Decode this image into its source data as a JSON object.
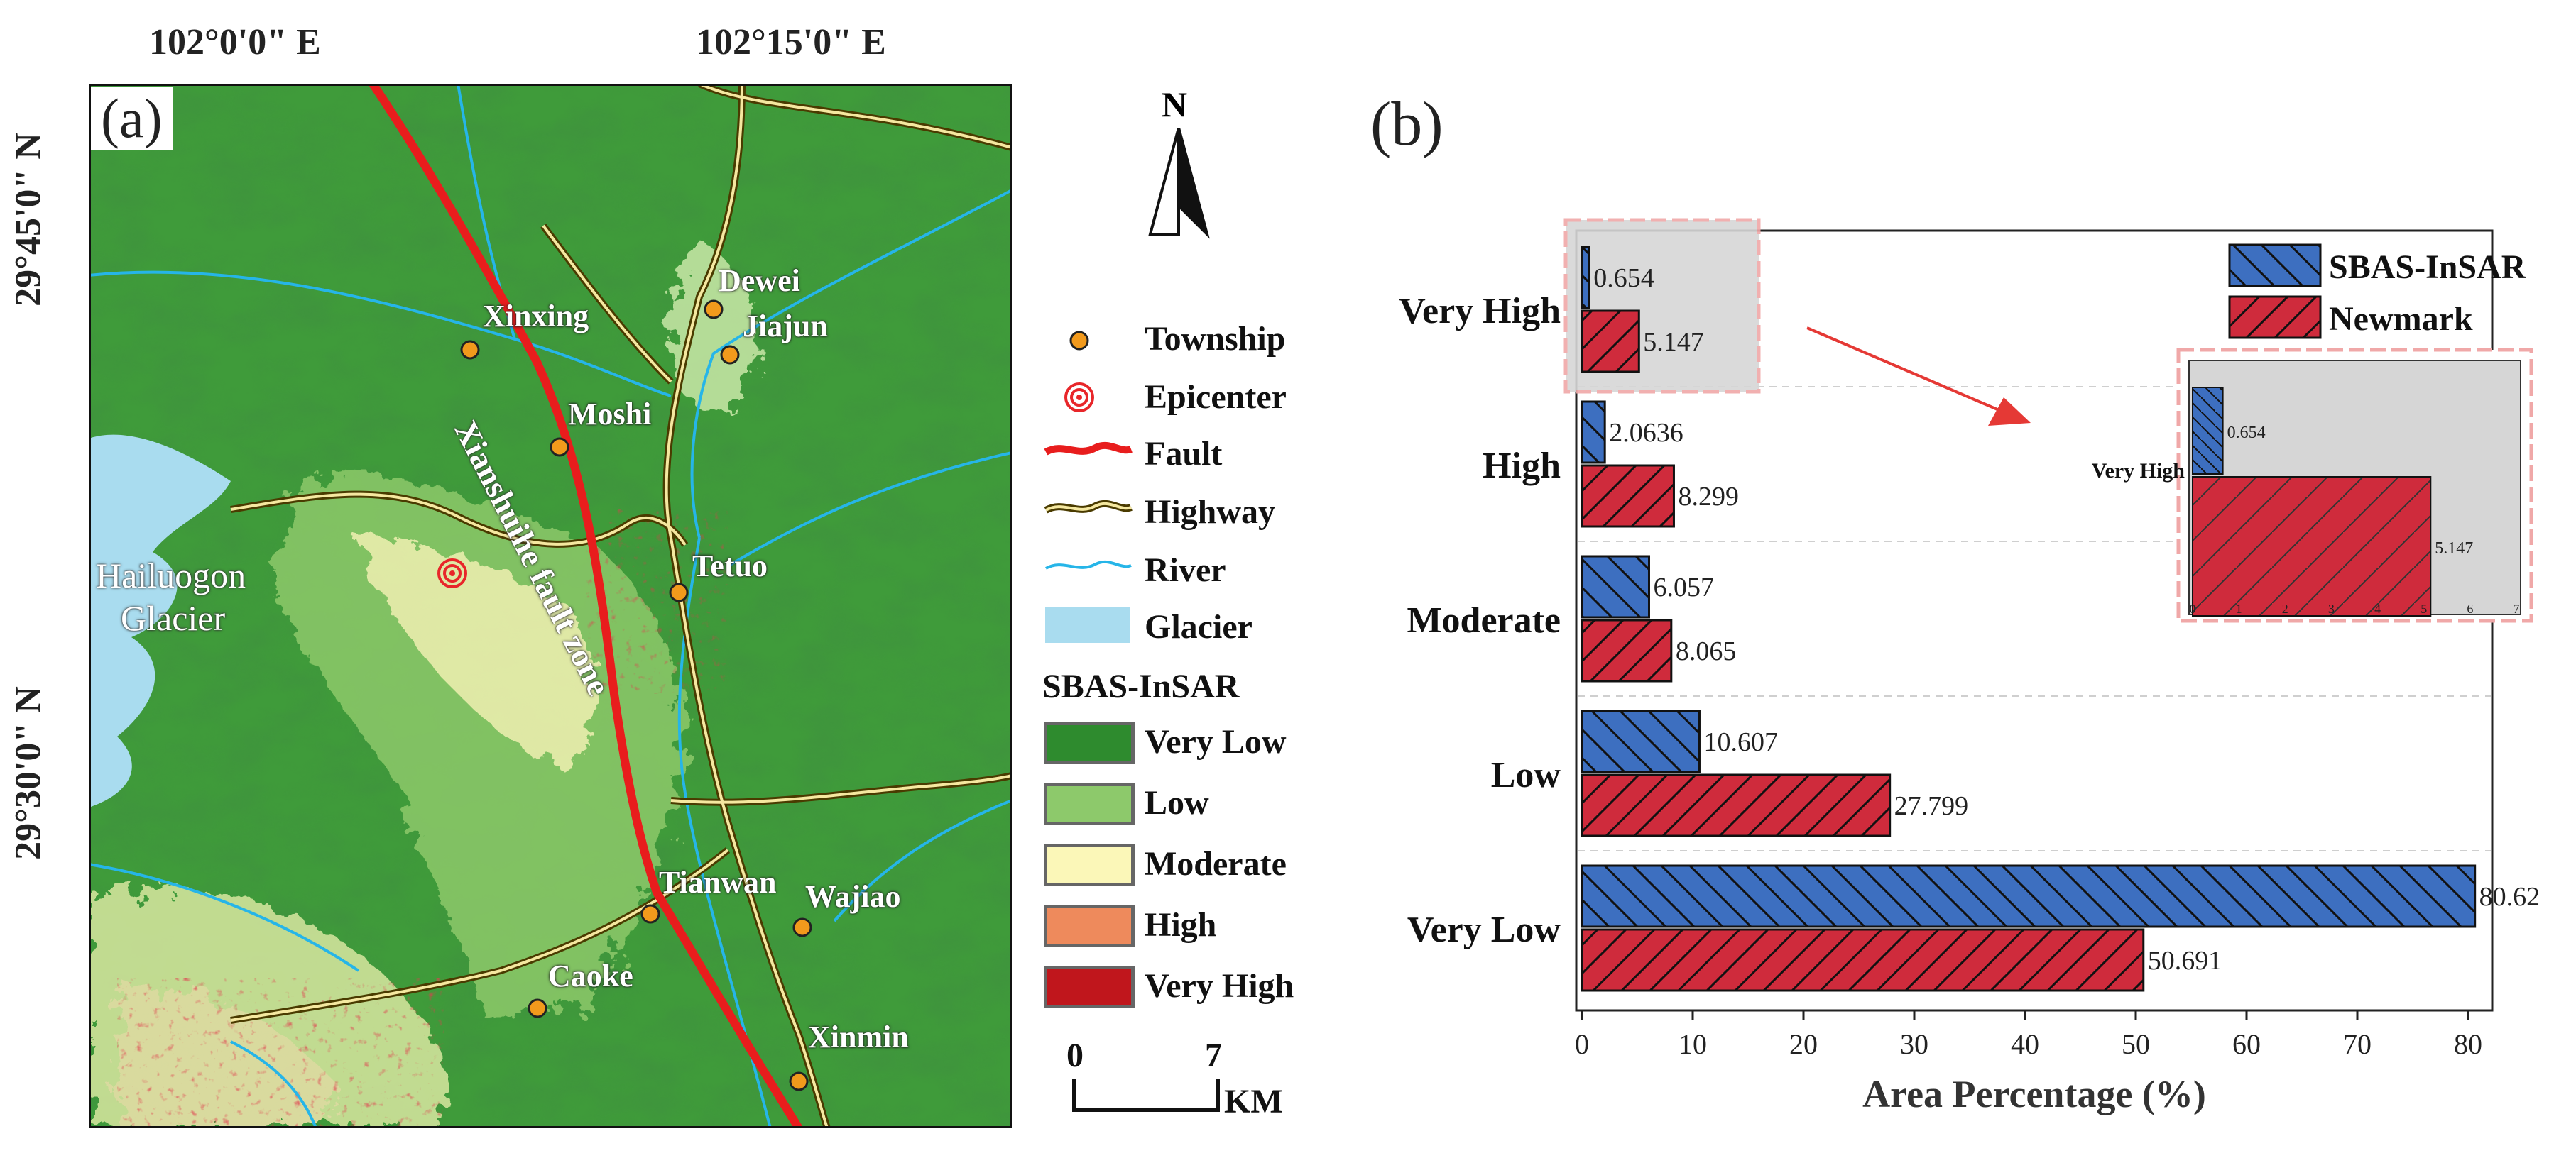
{
  "panel_a": {
    "label": "(a)",
    "coords": {
      "top_left": "102°0'0\" E",
      "top_right": "102°15'0\" E",
      "left_top": "29°45'0\" N",
      "left_bottom": "29°30'0\" N"
    },
    "north_label": "N",
    "townships": [
      "Xinxing",
      "Dewei",
      "Jiajun",
      "Moshi",
      "Tetuo",
      "Tianwan",
      "Wajiao",
      "Caoke",
      "Xinmin"
    ],
    "glacier_name_1": "Hailuogon",
    "glacier_name_2": "Glacier",
    "fault_zone_label": "Xianshuihe fault zone",
    "legend": {
      "township": "Township",
      "epicenter": "Epicenter",
      "fault": "Fault",
      "highway": "Highway",
      "river": "River",
      "glacier": "Glacier",
      "class_title": "SBAS-InSAR",
      "classes": [
        {
          "label": "Very Low",
          "color": "#2e8b2e"
        },
        {
          "label": "Low",
          "color": "#8dc96b"
        },
        {
          "label": "Moderate",
          "color": "#fbf7b8"
        },
        {
          "label": "High",
          "color": "#ee8a5c"
        },
        {
          "label": "Very High",
          "color": "#c0161c"
        }
      ]
    },
    "scale": {
      "zero": "0",
      "seven": "7",
      "unit": "KM"
    }
  },
  "panel_b": {
    "label": "(b)",
    "inset_category": "Very High",
    "inset_ticks": [
      "0",
      "1",
      "2",
      "3",
      "4",
      "5",
      "6",
      "7"
    ]
  },
  "chart_data": {
    "type": "bar",
    "orientation": "horizontal",
    "categories": [
      "Very High",
      "High",
      "Moderate",
      "Low",
      "Very Low"
    ],
    "series": [
      {
        "name": "SBAS-InSAR",
        "values": [
          0.654,
          2.0636,
          6.057,
          10.607,
          80.62
        ],
        "labels": [
          "0.654",
          "2.0636",
          "6.057",
          "10.607",
          "80.62"
        ],
        "color": "#3d6fc0"
      },
      {
        "name": "Newmark",
        "values": [
          5.147,
          8.299,
          8.065,
          27.799,
          50.691
        ],
        "labels": [
          "5.147",
          "8.299",
          "8.065",
          "27.799",
          "50.691"
        ],
        "color": "#cf2b3c"
      }
    ],
    "xlabel": "Area Percentage (%)",
    "xlim": [
      0,
      86
    ],
    "xticks": [
      "0",
      "10",
      "20",
      "30",
      "40",
      "50",
      "60",
      "70",
      "80"
    ],
    "legend_position": "top-right",
    "inset": {
      "category": "Very High",
      "xlim": [
        0,
        7
      ],
      "values": [
        0.654,
        5.147
      ]
    }
  }
}
